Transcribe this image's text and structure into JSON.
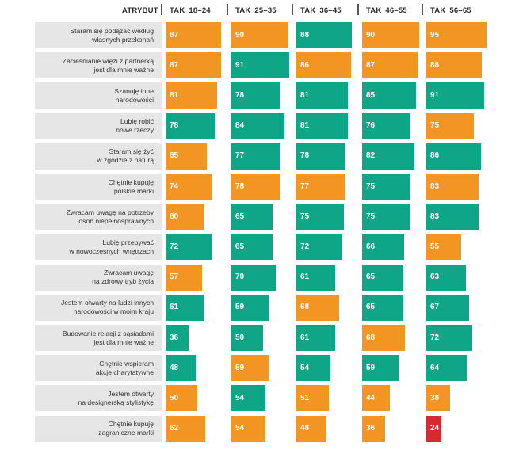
{
  "colors": {
    "orange": "#f39522",
    "green": "#0ea687",
    "red": "#d52b2f",
    "label_bg": "#e6e6e6"
  },
  "chart_data": {
    "type": "bar",
    "title": "",
    "xlabel": "",
    "ylabel": "",
    "header": "ATRYBUT",
    "xlim": [
      0,
      100
    ],
    "categories": [
      [
        "Staram się podążać według",
        "własnych przekonań"
      ],
      [
        "Zacieśnianie więzi z partnerką",
        "jest dla mnie ważne"
      ],
      [
        "Szanuję inne",
        "narodowości"
      ],
      [
        "Lubię robić",
        "nowe rzeczy"
      ],
      [
        "Staram się żyć",
        "w zgodzie z naturą"
      ],
      [
        "Chętnie kupuję",
        "polskie marki"
      ],
      [
        "Zwracam uwagę na potrzeby",
        "osób niepełnosprawnych"
      ],
      [
        "Lubię przebywać",
        "w nowoczesnych wnętrzach"
      ],
      [
        "Zwracam uwagę",
        "na zdrowy tryb życia"
      ],
      [
        "Jestem otwarty na ludzi innych",
        "narodowości w moim kraju"
      ],
      [
        "Budowanie relacji z sąsiadami",
        "jest dla mnie ważne"
      ],
      [
        "Chętnie wspieram",
        "akcje charytatywne"
      ],
      [
        "Jestem otwarty",
        "na designerską stylistykę"
      ],
      [
        "Chętnie kupuję",
        "zagraniczne marki"
      ]
    ],
    "series": [
      {
        "name": "TAK 18–24",
        "values": [
          87,
          87,
          81,
          78,
          65,
          74,
          60,
          72,
          57,
          61,
          36,
          48,
          50,
          62
        ],
        "colors": [
          "orange",
          "orange",
          "orange",
          "green",
          "orange",
          "orange",
          "orange",
          "green",
          "orange",
          "green",
          "green",
          "green",
          "orange",
          "orange"
        ]
      },
      {
        "name": "TAK 25–35",
        "values": [
          90,
          91,
          78,
          84,
          77,
          78,
          65,
          65,
          70,
          59,
          50,
          59,
          54,
          54
        ],
        "colors": [
          "orange",
          "green",
          "green",
          "green",
          "green",
          "orange",
          "green",
          "green",
          "green",
          "green",
          "green",
          "orange",
          "green",
          "orange"
        ]
      },
      {
        "name": "TAK 36–45",
        "values": [
          88,
          86,
          81,
          81,
          78,
          77,
          75,
          72,
          61,
          68,
          61,
          54,
          51,
          48
        ],
        "colors": [
          "green",
          "orange",
          "green",
          "green",
          "green",
          "orange",
          "green",
          "green",
          "green",
          "orange",
          "green",
          "green",
          "orange",
          "orange"
        ]
      },
      {
        "name": "TAK 46–55",
        "values": [
          90,
          87,
          85,
          76,
          82,
          75,
          75,
          66,
          65,
          65,
          68,
          59,
          44,
          36
        ],
        "colors": [
          "orange",
          "orange",
          "green",
          "green",
          "green",
          "green",
          "green",
          "green",
          "green",
          "green",
          "orange",
          "green",
          "orange",
          "orange"
        ]
      },
      {
        "name": "TAK 56–65",
        "values": [
          95,
          88,
          91,
          75,
          86,
          83,
          83,
          55,
          63,
          67,
          72,
          64,
          38,
          24
        ],
        "colors": [
          "orange",
          "orange",
          "green",
          "orange",
          "green",
          "orange",
          "green",
          "orange",
          "green",
          "green",
          "green",
          "green",
          "orange",
          "red"
        ]
      }
    ]
  }
}
